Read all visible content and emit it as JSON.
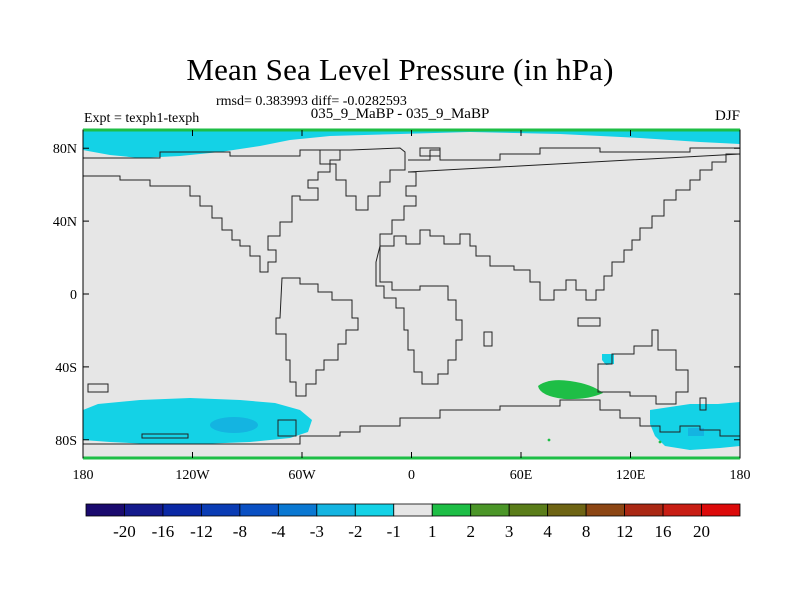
{
  "title": "Mean Sea Level Pressure (in hPa)",
  "stats": "rmsd= 0.383993 diff= -0.0282593",
  "experiment": "Expt = texph1-texph",
  "center_label": "035_9_MaBP - 035_9_MaBP",
  "season": "DJF",
  "chart_data": {
    "type": "map",
    "projection": "cylindrical equidistant",
    "lon_range": [
      -180,
      180
    ],
    "lat_range": [
      -90,
      90
    ],
    "x_ticks": [
      {
        "value": -180,
        "label": "180"
      },
      {
        "value": -120,
        "label": "120W"
      },
      {
        "value": -60,
        "label": "60W"
      },
      {
        "value": 0,
        "label": "0"
      },
      {
        "value": 60,
        "label": "60E"
      },
      {
        "value": 120,
        "label": "120E"
      },
      {
        "value": 180,
        "label": "180"
      }
    ],
    "y_ticks": [
      {
        "value": 80,
        "label": "80N"
      },
      {
        "value": 40,
        "label": "40N"
      },
      {
        "value": 0,
        "label": "0"
      },
      {
        "value": -40,
        "label": "40S"
      },
      {
        "value": -80,
        "label": "80S"
      }
    ],
    "colorbar": {
      "labels": [
        "-20",
        "-16",
        "-12",
        "-8",
        "-4",
        "-3",
        "-2",
        "-1",
        "1",
        "2",
        "3",
        "4",
        "8",
        "12",
        "16",
        "20"
      ],
      "colors": [
        "#1a0a6e",
        "#141a8c",
        "#0a28a5",
        "#0a3cb4",
        "#0a50c3",
        "#0a78d2",
        "#14b4e1",
        "#14d2e6",
        "#e6e6e6",
        "#1ebe46",
        "#4b9628",
        "#5a7d19",
        "#6e6414",
        "#8c4614",
        "#aa2814",
        "#c81e14",
        "#dc0a0a"
      ]
    },
    "background_color": "#e6e6e6",
    "anomaly_regions": [
      {
        "name": "arctic-band",
        "level": "-1 to -2",
        "color": "#14d2e6"
      },
      {
        "name": "antarctic-south-pacific",
        "level": "-1 to -2",
        "color": "#14d2e6"
      },
      {
        "name": "amundsen-low",
        "level": "-2 to -3",
        "color": "#14b4e1"
      },
      {
        "name": "australia-coast",
        "level": "-1 to -2",
        "color": "#14d2e6"
      },
      {
        "name": "indian-ocean-high",
        "level": "1 to 2",
        "color": "#1ebe46"
      },
      {
        "name": "ross-sea",
        "level": "-1 to -2",
        "color": "#14d2e6"
      }
    ]
  }
}
